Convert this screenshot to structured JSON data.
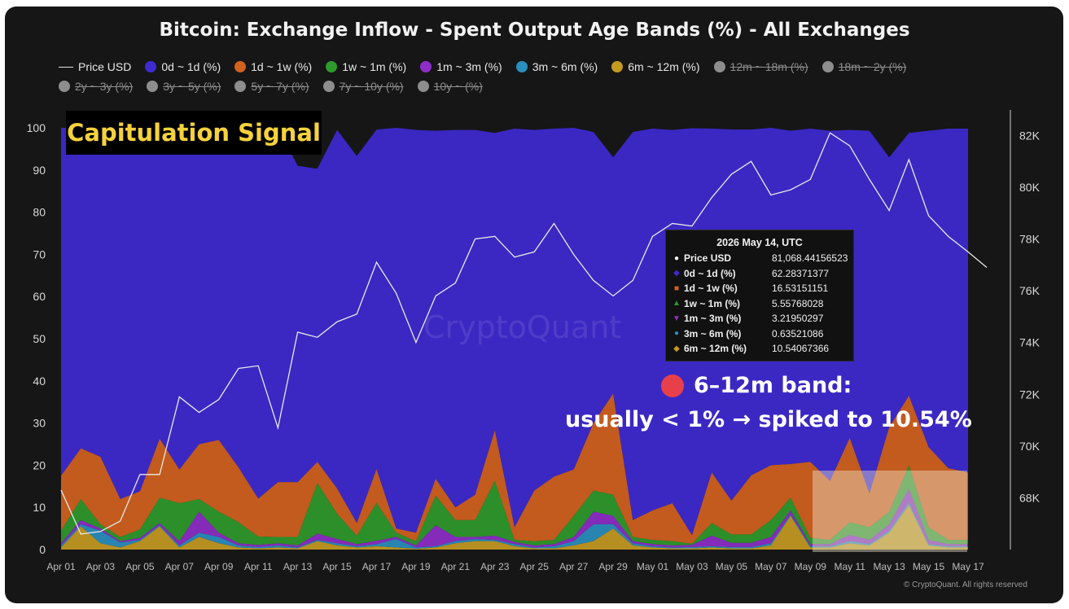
{
  "title": "Bitcoin: Exchange Inflow - Spent Output Age Bands (%) - All Exchanges",
  "legend": {
    "row1": [
      {
        "label": "Price USD",
        "kind": "line",
        "color": "#e0e0e0",
        "active": true
      },
      {
        "label": "0d ~ 1d (%)",
        "kind": "dot",
        "color": "#3f2ad2",
        "active": true
      },
      {
        "label": "1d ~ 1w (%)",
        "kind": "dot",
        "color": "#d2621f",
        "active": true
      },
      {
        "label": "1w ~ 1m (%)",
        "kind": "dot",
        "color": "#2f9a2c",
        "active": true
      },
      {
        "label": "1m ~ 3m (%)",
        "kind": "dot",
        "color": "#8e2ec9",
        "active": true
      },
      {
        "label": "3m ~ 6m (%)",
        "kind": "dot",
        "color": "#2a8fbf",
        "active": true
      },
      {
        "label": "6m ~ 12m (%)",
        "kind": "dot",
        "color": "#c49a22",
        "active": true
      },
      {
        "label": "12m ~ 18m (%)",
        "kind": "dot",
        "color": "#8d8d8d",
        "active": false
      },
      {
        "label": "18m ~ 2y (%)",
        "kind": "dot",
        "color": "#8d8d8d",
        "active": false
      }
    ],
    "row2": [
      {
        "label": "2y ~ 3y (%)",
        "kind": "dot",
        "color": "#8d8d8d",
        "active": false
      },
      {
        "label": "3y ~ 5y (%)",
        "kind": "dot",
        "color": "#8d8d8d",
        "active": false
      },
      {
        "label": "5y ~ 7y (%)",
        "kind": "dot",
        "color": "#8d8d8d",
        "active": false
      },
      {
        "label": "7y ~ 10y (%)",
        "kind": "dot",
        "color": "#8d8d8d",
        "active": false
      },
      {
        "label": "10y ~ (%)",
        "kind": "dot",
        "color": "#8d8d8d",
        "active": false
      }
    ]
  },
  "capitulation_label": "Capitulation Signal",
  "tooltip": {
    "date": "2026 May 14, UTC",
    "rows": [
      {
        "mark": "●",
        "color": "#ffffff",
        "name": "Price USD",
        "value": "81,068.44156523"
      },
      {
        "mark": "◆",
        "color": "#3f2ad2",
        "name": "0d ~ 1d (%)",
        "value": "62.28371377"
      },
      {
        "mark": "■",
        "color": "#d2621f",
        "name": "1d ~ 1w (%)",
        "value": "16.53151151"
      },
      {
        "mark": "▲",
        "color": "#2f9a2c",
        "name": "1w ~ 1m (%)",
        "value": "5.55768028"
      },
      {
        "mark": "▼",
        "color": "#8e2ec9",
        "name": "1m ~ 3m (%)",
        "value": "3.21950297"
      },
      {
        "mark": "●",
        "color": "#2a8fbf",
        "name": "3m ~ 6m (%)",
        "value": "0.63521086"
      },
      {
        "mark": "◆",
        "color": "#c49a22",
        "name": "6m ~ 12m (%)",
        "value": "10.54067366"
      }
    ]
  },
  "annotation": {
    "line1": "6–12m band:",
    "line2": "usually < 1% → spiked to 10.54%"
  },
  "watermark": "CryptoQuant",
  "credit": "© CryptoQuant. All rights reserved",
  "chart_data": {
    "type": "area",
    "stacked": true,
    "grid": false,
    "x": [
      "Apr 01",
      "Apr 02",
      "Apr 03",
      "Apr 04",
      "Apr 05",
      "Apr 06",
      "Apr 07",
      "Apr 08",
      "Apr 09",
      "Apr 10",
      "Apr 11",
      "Apr 12",
      "Apr 13",
      "Apr 14",
      "Apr 15",
      "Apr 16",
      "Apr 17",
      "Apr 18",
      "Apr 19",
      "Apr 20",
      "Apr 21",
      "Apr 22",
      "Apr 23",
      "Apr 24",
      "Apr 25",
      "Apr 26",
      "Apr 27",
      "Apr 28",
      "Apr 29",
      "Apr 30",
      "May 01",
      "May 02",
      "May 03",
      "May 04",
      "May 05",
      "May 06",
      "May 07",
      "May 08",
      "May 09",
      "May 10",
      "May 11",
      "May 12",
      "May 13",
      "May 14",
      "May 15",
      "May 16",
      "May 17"
    ],
    "x_ticks": [
      "Apr 01",
      "Apr 03",
      "Apr 05",
      "Apr 07",
      "Apr 09",
      "Apr 11",
      "Apr 13",
      "Apr 15",
      "Apr 17",
      "Apr 19",
      "Apr 21",
      "Apr 23",
      "Apr 25",
      "Apr 27",
      "Apr 29",
      "May 01",
      "May 03",
      "May 05",
      "May 07",
      "May 09",
      "May 11",
      "May 13",
      "May 15",
      "May 17"
    ],
    "y_left": {
      "ticks": [
        0,
        10,
        20,
        30,
        40,
        50,
        60,
        70,
        80,
        90,
        100
      ],
      "range": [
        0,
        100
      ]
    },
    "y_right": {
      "ticks": [
        "68K",
        "70K",
        "72K",
        "74K",
        "76K",
        "78K",
        "80K",
        "82K"
      ],
      "range": [
        66000,
        82200
      ]
    },
    "series": [
      {
        "name": "6m ~ 12m (%)",
        "color": "#c49a22",
        "values": [
          0.5,
          5.5,
          1.5,
          0.5,
          2,
          5.5,
          0.5,
          3,
          1.5,
          0.5,
          0.3,
          0.5,
          0.3,
          2,
          1,
          0.5,
          0.8,
          0.5,
          0.2,
          0.5,
          1.5,
          2,
          2,
          0.8,
          0.3,
          0.3,
          1,
          2,
          5,
          1,
          0.5,
          0.3,
          0.3,
          0.5,
          0.3,
          0.3,
          1,
          8,
          0.5,
          0.5,
          1.5,
          1,
          4,
          10.54,
          1,
          0.5,
          0.5
        ]
      },
      {
        "name": "3m ~ 6m (%)",
        "color": "#2a8fbf",
        "values": [
          0.5,
          0.5,
          3,
          1.2,
          0.3,
          0.3,
          0.5,
          1,
          1.5,
          0.5,
          0.3,
          0.5,
          0.2,
          0.3,
          0.5,
          0.3,
          0.5,
          2,
          0.3,
          0.3,
          0.5,
          0.5,
          0.3,
          0.5,
          0.2,
          0.5,
          1,
          4,
          1,
          0.5,
          0.3,
          0.2,
          0.3,
          0.3,
          0.3,
          0.3,
          0.5,
          0.3,
          0.3,
          0.3,
          0.5,
          0.3,
          0.5,
          0.64,
          0.3,
          0.3,
          0.3
        ]
      },
      {
        "name": "1m ~ 3m (%)",
        "color": "#8e2ec9",
        "values": [
          0.5,
          1,
          0.5,
          0.3,
          0.5,
          0.5,
          1,
          5,
          1,
          0.5,
          0.5,
          0.5,
          0.5,
          1.5,
          1,
          0.5,
          0.8,
          0.5,
          0.5,
          5,
          1,
          0.5,
          1,
          0.5,
          0.5,
          0.5,
          1,
          3,
          2,
          0.5,
          0.5,
          0.5,
          0.5,
          2.5,
          1,
          1,
          1.5,
          1,
          0.5,
          0.5,
          1.5,
          1,
          1.5,
          3.22,
          1,
          0.5,
          0.5
        ]
      },
      {
        "name": "1w ~ 1m (%)",
        "color": "#2f9a2c",
        "values": [
          3,
          5,
          1,
          1,
          2,
          6,
          9,
          3,
          5,
          5,
          2,
          1.5,
          2,
          12,
          6,
          2,
          9,
          1,
          1,
          7,
          4,
          4,
          13,
          0.5,
          1,
          1,
          5,
          5,
          5,
          1,
          1,
          1,
          0.3,
          3,
          2,
          2,
          4,
          3,
          1.5,
          1,
          3,
          3,
          3,
          5.56,
          3,
          1,
          1
        ]
      },
      {
        "name": "1d ~ 1w (%)",
        "color": "#d2621f",
        "values": [
          13,
          12,
          16,
          9,
          9,
          14,
          8,
          13,
          17,
          13,
          9,
          13,
          13,
          5,
          6,
          3,
          8,
          1,
          2,
          4,
          3,
          6,
          12,
          3,
          12,
          15,
          11,
          16,
          24,
          4,
          7,
          9,
          2,
          12,
          8,
          14,
          13,
          8,
          18,
          14,
          20,
          8,
          20,
          16.53,
          19,
          17,
          16
        ]
      },
      {
        "name": "0d ~ 1d (%)",
        "color": "#3f2ad2",
        "values": [
          82.5,
          76,
          78,
          87.5,
          86,
          74,
          81,
          74.5,
          74.5,
          80.5,
          87.5,
          84,
          75,
          69.5,
          85,
          87,
          80.5,
          95,
          95.5,
          82.5,
          89.5,
          86.5,
          70.5,
          94.5,
          85.5,
          82.5,
          81,
          69,
          56,
          92,
          90.5,
          88.5,
          96.5,
          81.5,
          88,
          82,
          80,
          79,
          79,
          83,
          73,
          86,
          64,
          62.28,
          75,
          80.5,
          81.5
        ]
      },
      {
        "name": "Price USD",
        "color": "#e8e8e8",
        "axis": "right",
        "kind": "line",
        "values": [
          68300,
          66600,
          66700,
          67100,
          68900,
          68900,
          71900,
          71300,
          71800,
          73000,
          73100,
          70700,
          74400,
          74200,
          74800,
          75100,
          77100,
          75900,
          74000,
          75800,
          76300,
          78000,
          78100,
          77300,
          77500,
          78600,
          77400,
          76400,
          75800,
          76400,
          78100,
          78600,
          78500,
          79600,
          80500,
          81000,
          79700,
          79900,
          80300,
          82100,
          81600,
          80300,
          79100,
          81068.44,
          78900,
          78100,
          77500
        ]
      }
    ],
    "extra_price_tail": {
      "x": "May 18",
      "value": 76900
    }
  }
}
